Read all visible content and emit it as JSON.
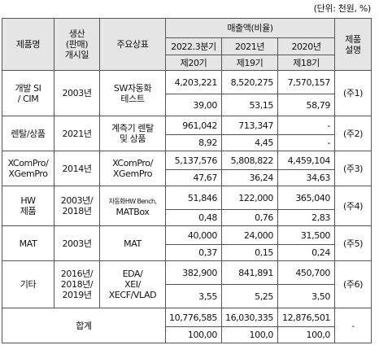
{
  "unit_note": "(단위: 천원, %)",
  "headers": {
    "product": "제품명",
    "launch": [
      "생산",
      "(판매)",
      "개시일"
    ],
    "main_products": "주요상표",
    "sales": "매출액(비율)",
    "desc": [
      "제품",
      "설명"
    ],
    "periods": [
      "2022.3분기",
      "2021년",
      "2020년"
    ],
    "terms": [
      "제20기",
      "제19기",
      "제18기"
    ]
  },
  "rows": [
    {
      "product": [
        "개발 SI",
        "/ CIM"
      ],
      "launch": [
        "2003년"
      ],
      "brand": [
        "SW자동화",
        "테스트"
      ],
      "sales": [
        "4,203,221",
        "8,520,275",
        "7,570,157"
      ],
      "ratio": [
        "39,00",
        "53,15",
        "58,79"
      ],
      "note": "(주1)"
    },
    {
      "product": [
        "렌탈/상품"
      ],
      "launch": [
        "2021년"
      ],
      "brand": [
        "계측기 렌탈",
        "및 상품"
      ],
      "sales": [
        "961,042",
        "713,347",
        "-"
      ],
      "ratio": [
        "8,92",
        "4,45",
        "-"
      ],
      "note": "(주2)"
    },
    {
      "product": [
        "XComPro/",
        "XGemPro"
      ],
      "launch": [
        "2014년"
      ],
      "brand": [
        "XComPro/",
        "XGemPro"
      ],
      "sales": [
        "5,137,576",
        "5,808,822",
        "4,459,104"
      ],
      "ratio": [
        "47,67",
        "36,24",
        "34,63"
      ],
      "note": "(주3)"
    },
    {
      "product": [
        "HW",
        "제품"
      ],
      "launch": [
        "2003년/",
        "2018년"
      ],
      "brand": [
        "자동화HW Bench,",
        "MATBox"
      ],
      "sales": [
        "51,846",
        "122,000",
        "365,040"
      ],
      "ratio": [
        "0,48",
        "0,76",
        "2,83"
      ],
      "note": "(주4)"
    },
    {
      "product": [
        "MAT"
      ],
      "launch": [
        "2003년"
      ],
      "brand": [
        "MAT"
      ],
      "sales": [
        "40,000",
        "24,000",
        "31,500"
      ],
      "ratio": [
        "0,37",
        "0,15",
        "0,24"
      ],
      "note": "(주5)"
    },
    {
      "product": [
        "기타"
      ],
      "launch": [
        "2016년/",
        "2018년/",
        "2019년"
      ],
      "brand": [
        "EDA/",
        "XEI/",
        "XECF/VLAD"
      ],
      "sales": [
        "382,900",
        "841,891",
        "450,700"
      ],
      "ratio": [
        "3,55",
        "5,25",
        "3,50"
      ],
      "note": "(주6)"
    }
  ],
  "total": {
    "label": "합계",
    "sales": [
      "10,776,585",
      "16,030,335",
      "12,876,501"
    ],
    "ratio": [
      "100,00",
      "100,0",
      "100,0"
    ],
    "note": "-"
  }
}
